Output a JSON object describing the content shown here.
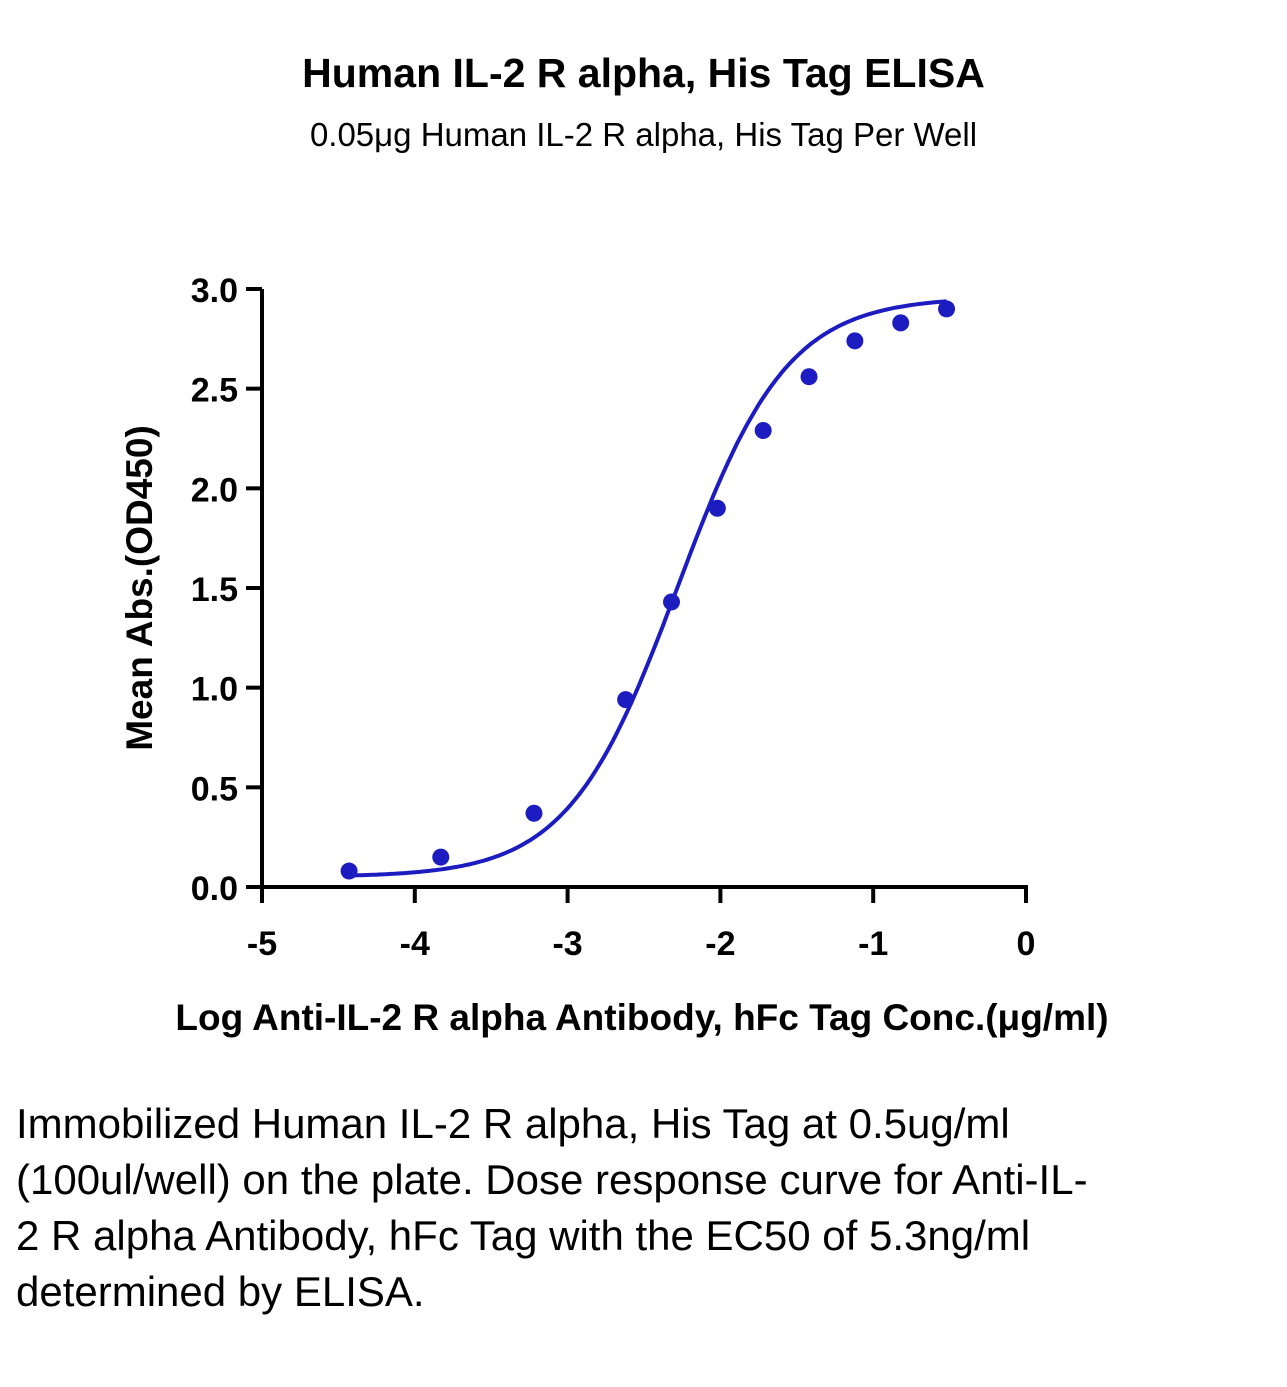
{
  "chart_data": {
    "type": "scatter",
    "title": "Human IL-2 R alpha, His Tag ELISA",
    "subtitle": "0.05μg Human IL-2 R alpha, His Tag Per Well",
    "xlabel": "Log Anti-IL-2 R alpha Antibody, hFc Tag Conc.(μg/ml)",
    "ylabel": "Mean Abs.(OD450)",
    "xlim": [
      -5,
      0
    ],
    "ylim": [
      0,
      3.0
    ],
    "xticks": [
      -5,
      -4,
      -3,
      -2,
      -1,
      0
    ],
    "xtick_labels": [
      "-5",
      "-4",
      "-3",
      "-2",
      "-1",
      "0"
    ],
    "yticks": [
      0,
      0.5,
      1.0,
      1.5,
      2.0,
      2.5,
      3.0
    ],
    "ytick_labels": [
      "0.0",
      "0.5",
      "1.0",
      "1.5",
      "2.0",
      "2.5",
      "3.0"
    ],
    "grid": false,
    "series": [
      {
        "color": "#1c1cc0",
        "fit": "four-parameter logistic",
        "x": [
          -4.43,
          -3.83,
          -3.22,
          -2.62,
          -2.32,
          -2.02,
          -1.72,
          -1.42,
          -1.12,
          -0.82,
          -0.52
        ],
        "y": [
          0.08,
          0.15,
          0.37,
          0.94,
          1.43,
          1.9,
          2.29,
          2.56,
          2.74,
          2.83,
          2.9
        ]
      }
    ],
    "fit_params": {
      "bottom": 0.05,
      "top": 2.96,
      "logEC50": -2.28,
      "hill": 1.21
    }
  },
  "caption": "Immobilized Human IL-2 R alpha, His Tag at 0.5ug/ml (100ul/well) on the plate. Dose response curve for Anti-IL-2 R alpha Antibody, hFc Tag with the EC50 of 5.3ng/ml determined by ELISA."
}
